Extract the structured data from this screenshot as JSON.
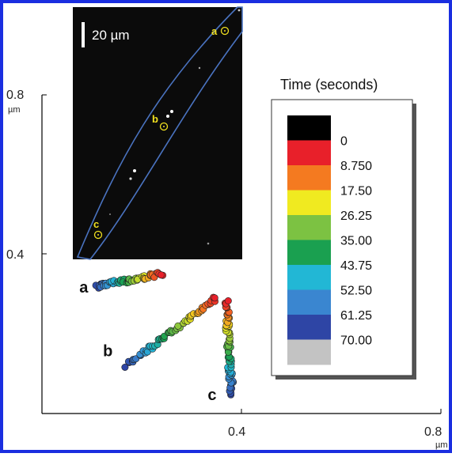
{
  "chart_data": {
    "type": "scatter",
    "title": "",
    "xlabel": "µm",
    "ylabel": "µm",
    "x_ticks": [
      "0.4",
      "0.8"
    ],
    "y_ticks": [
      "0.4",
      "0.8"
    ],
    "xlim": [
      0.0,
      0.8
    ],
    "ylim": [
      0.0,
      0.8
    ],
    "grid": false,
    "legend": {
      "title": "Time (seconds)",
      "placement": "right",
      "entries": [
        {
          "label": "",
          "color": "#000000"
        },
        {
          "label": "0",
          "color": "#e8202a"
        },
        {
          "label": "8.750",
          "color": "#f47a20"
        },
        {
          "label": "17.50",
          "color": "#f0ea20"
        },
        {
          "label": "26.25",
          "color": "#7cc242"
        },
        {
          "label": "35.00",
          "color": "#1aa050"
        },
        {
          "label": "43.75",
          "color": "#22b7d5"
        },
        {
          "label": "52.50",
          "color": "#3a86d0"
        },
        {
          "label": "61.25",
          "color": "#2e45a5"
        },
        {
          "label": "70.00",
          "color": "#c3c3c3"
        }
      ]
    },
    "series": [
      {
        "name": "a",
        "x_start": 0.11,
        "y_start": 0.32,
        "x_end": 0.24,
        "y_end": 0.35
      },
      {
        "name": "b",
        "x_start": 0.17,
        "y_start": 0.12,
        "x_end": 0.35,
        "y_end": 0.29
      },
      {
        "name": "c",
        "x_start": 0.38,
        "y_start": 0.05,
        "x_end": 0.37,
        "y_end": 0.28
      }
    ]
  },
  "inset": {
    "scale_label": "20 µm",
    "markers": [
      "a",
      "b",
      "c"
    ]
  }
}
